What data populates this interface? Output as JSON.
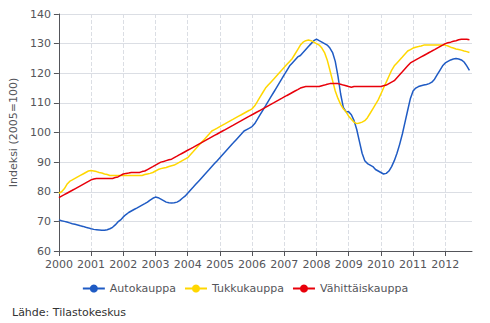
{
  "chart_data": {
    "type": "line",
    "ylabel": "Indeksi (2005=100)",
    "annotation": "Lähde: Tilastokeskus",
    "xlim": [
      2000.0,
      2012.83
    ],
    "xticks": [
      2000,
      2001,
      2002,
      2003,
      2004,
      2005,
      2006,
      2007,
      2008,
      2009,
      2010,
      2011,
      2012
    ],
    "ylim": [
      60,
      140
    ],
    "yticks": [
      60,
      70,
      80,
      90,
      100,
      110,
      120,
      130,
      140
    ],
    "grid": true,
    "legend": "bottom",
    "x": [
      2000.0,
      2000.083,
      2000.167,
      2000.25,
      2000.333,
      2000.417,
      2000.5,
      2000.583,
      2000.667,
      2000.75,
      2000.833,
      2000.917,
      2001.0,
      2001.083,
      2001.167,
      2001.25,
      2001.333,
      2001.417,
      2001.5,
      2001.583,
      2001.667,
      2001.75,
      2001.833,
      2001.917,
      2002.0,
      2002.083,
      2002.167,
      2002.25,
      2002.333,
      2002.417,
      2002.5,
      2002.583,
      2002.667,
      2002.75,
      2002.833,
      2002.917,
      2003.0,
      2003.083,
      2003.167,
      2003.25,
      2003.333,
      2003.417,
      2003.5,
      2003.583,
      2003.667,
      2003.75,
      2003.833,
      2003.917,
      2004.0,
      2004.083,
      2004.167,
      2004.25,
      2004.333,
      2004.417,
      2004.5,
      2004.583,
      2004.667,
      2004.75,
      2004.833,
      2004.917,
      2005.0,
      2005.083,
      2005.167,
      2005.25,
      2005.333,
      2005.417,
      2005.5,
      2005.583,
      2005.667,
      2005.75,
      2005.833,
      2005.917,
      2006.0,
      2006.083,
      2006.167,
      2006.25,
      2006.333,
      2006.417,
      2006.5,
      2006.583,
      2006.667,
      2006.75,
      2006.833,
      2006.917,
      2007.0,
      2007.083,
      2007.167,
      2007.25,
      2007.333,
      2007.417,
      2007.5,
      2007.583,
      2007.667,
      2007.75,
      2007.833,
      2007.917,
      2008.0,
      2008.083,
      2008.167,
      2008.25,
      2008.333,
      2008.417,
      2008.5,
      2008.583,
      2008.667,
      2008.75,
      2008.833,
      2008.917,
      2009.0,
      2009.083,
      2009.167,
      2009.25,
      2009.333,
      2009.417,
      2009.5,
      2009.583,
      2009.667,
      2009.75,
      2009.833,
      2009.917,
      2010.0,
      2010.083,
      2010.167,
      2010.25,
      2010.333,
      2010.417,
      2010.5,
      2010.583,
      2010.667,
      2010.75,
      2010.833,
      2010.917,
      2011.0,
      2011.083,
      2011.167,
      2011.25,
      2011.333,
      2011.417,
      2011.5,
      2011.583,
      2011.667,
      2011.75,
      2011.833,
      2011.917,
      2012.0,
      2012.083,
      2012.167,
      2012.25,
      2012.333,
      2012.417,
      2012.5,
      2012.583,
      2012.667,
      2012.75
    ],
    "series": [
      {
        "name": "Autokauppa",
        "color": "#1F5BC4",
        "values": [
          70.5,
          70.2,
          70.0,
          69.8,
          69.5,
          69.2,
          69.0,
          68.8,
          68.5,
          68.3,
          68.0,
          67.8,
          67.5,
          67.3,
          67.2,
          67.1,
          67.0,
          67.0,
          67.2,
          67.5,
          68.0,
          68.8,
          69.8,
          70.5,
          71.5,
          72.3,
          73.0,
          73.5,
          74.0,
          74.5,
          75.0,
          75.5,
          76.0,
          76.5,
          77.2,
          77.8,
          78.2,
          78.0,
          77.5,
          77.0,
          76.5,
          76.3,
          76.2,
          76.3,
          76.5,
          77.0,
          77.8,
          78.5,
          79.5,
          80.5,
          81.5,
          82.5,
          83.5,
          84.5,
          85.5,
          86.5,
          87.5,
          88.5,
          89.5,
          90.5,
          91.5,
          92.5,
          93.5,
          94.5,
          95.5,
          96.5,
          97.5,
          98.5,
          99.5,
          100.5,
          101.0,
          101.5,
          102.0,
          103.0,
          104.5,
          106.0,
          107.5,
          109.0,
          110.5,
          112.0,
          113.5,
          115.0,
          116.5,
          118.0,
          119.5,
          121.0,
          122.5,
          123.5,
          124.5,
          125.5,
          126.0,
          127.0,
          128.0,
          129.0,
          130.0,
          131.0,
          131.5,
          131.0,
          130.5,
          130.0,
          129.5,
          128.5,
          127.0,
          124.0,
          119.0,
          113.0,
          108.5,
          107.0,
          107.0,
          106.0,
          104.0,
          101.0,
          97.0,
          93.0,
          90.5,
          89.5,
          89.0,
          88.5,
          87.5,
          87.0,
          86.5,
          86.0,
          86.2,
          87.0,
          88.5,
          90.5,
          93.0,
          96.0,
          99.5,
          103.5,
          107.5,
          111.5,
          114.0,
          115.0,
          115.5,
          115.8,
          116.0,
          116.2,
          116.5,
          117.0,
          118.0,
          119.5,
          121.0,
          122.5,
          123.5,
          124.0,
          124.5,
          124.8,
          125.0,
          124.8,
          124.5,
          123.8,
          122.5,
          121.0
        ]
      },
      {
        "name": "Tukkukauppa",
        "color": "#FFD700",
        "values": [
          79.5,
          80.0,
          81.0,
          82.5,
          83.5,
          84.0,
          84.5,
          85.0,
          85.5,
          86.0,
          86.5,
          87.0,
          87.2,
          87.0,
          86.8,
          86.5,
          86.3,
          86.0,
          85.8,
          85.5,
          85.5,
          85.5,
          85.5,
          85.5,
          85.5,
          85.5,
          85.5,
          85.5,
          85.5,
          85.5,
          85.5,
          85.5,
          85.8,
          86.0,
          86.2,
          86.5,
          87.0,
          87.5,
          87.8,
          88.0,
          88.2,
          88.5,
          88.8,
          89.0,
          89.5,
          90.0,
          90.5,
          91.0,
          91.5,
          92.5,
          93.5,
          94.5,
          95.5,
          96.5,
          97.5,
          98.5,
          99.5,
          100.5,
          101.0,
          101.5,
          102.0,
          102.5,
          103.0,
          103.5,
          104.0,
          104.5,
          105.0,
          105.5,
          106.0,
          106.5,
          107.0,
          107.5,
          108.0,
          109.0,
          110.5,
          112.0,
          113.5,
          115.0,
          116.0,
          117.0,
          118.0,
          119.0,
          120.0,
          121.0,
          122.0,
          123.0,
          124.0,
          125.0,
          126.5,
          128.0,
          129.5,
          130.5,
          131.0,
          131.2,
          131.0,
          130.5,
          130.0,
          129.5,
          128.5,
          127.0,
          124.5,
          121.0,
          117.5,
          114.0,
          111.5,
          109.5,
          108.0,
          107.0,
          105.5,
          104.5,
          103.5,
          103.0,
          103.2,
          103.5,
          104.0,
          105.0,
          106.5,
          108.0,
          109.5,
          111.0,
          113.0,
          115.0,
          117.0,
          119.0,
          121.0,
          122.5,
          123.5,
          124.5,
          125.5,
          126.5,
          127.5,
          128.0,
          128.5,
          128.8,
          129.0,
          129.2,
          129.5,
          129.5,
          129.5,
          129.5,
          129.5,
          129.5,
          129.5,
          129.5,
          129.5,
          129.2,
          128.8,
          128.5,
          128.2,
          128.0,
          127.8,
          127.5,
          127.3,
          127.0
        ]
      },
      {
        "name": "Vähittäiskauppa",
        "color": "#E8000A",
        "values": [
          78.0,
          78.5,
          79.0,
          79.5,
          80.0,
          80.5,
          81.0,
          81.5,
          82.0,
          82.5,
          83.0,
          83.5,
          84.0,
          84.3,
          84.5,
          84.5,
          84.5,
          84.5,
          84.5,
          84.5,
          84.5,
          84.8,
          85.0,
          85.5,
          86.0,
          86.2,
          86.3,
          86.5,
          86.5,
          86.5,
          86.5,
          86.8,
          87.0,
          87.5,
          88.0,
          88.5,
          89.0,
          89.5,
          90.0,
          90.2,
          90.5,
          90.8,
          91.0,
          91.5,
          92.0,
          92.5,
          93.0,
          93.5,
          94.0,
          94.5,
          95.0,
          95.5,
          96.0,
          96.5,
          97.0,
          97.5,
          98.0,
          98.5,
          99.0,
          99.5,
          100.0,
          100.5,
          101.0,
          101.5,
          102.0,
          102.5,
          103.0,
          103.5,
          104.0,
          104.5,
          105.0,
          105.5,
          106.0,
          106.5,
          107.0,
          107.5,
          108.0,
          108.5,
          109.0,
          109.5,
          110.0,
          110.5,
          111.0,
          111.5,
          112.0,
          112.5,
          113.0,
          113.5,
          114.0,
          114.5,
          115.0,
          115.3,
          115.5,
          115.5,
          115.5,
          115.5,
          115.5,
          115.5,
          115.8,
          116.0,
          116.3,
          116.5,
          116.5,
          116.5,
          116.5,
          116.3,
          116.0,
          115.8,
          115.5,
          115.3,
          115.5,
          115.5,
          115.5,
          115.5,
          115.5,
          115.5,
          115.5,
          115.5,
          115.5,
          115.5,
          115.5,
          115.8,
          116.0,
          116.5,
          117.0,
          117.5,
          118.5,
          119.5,
          120.5,
          121.5,
          122.5,
          123.5,
          124.0,
          124.5,
          125.0,
          125.5,
          126.0,
          126.5,
          127.0,
          127.5,
          128.0,
          128.5,
          129.0,
          129.5,
          130.0,
          130.3,
          130.5,
          130.8,
          131.0,
          131.3,
          131.5,
          131.5,
          131.5,
          131.3
        ]
      }
    ]
  }
}
